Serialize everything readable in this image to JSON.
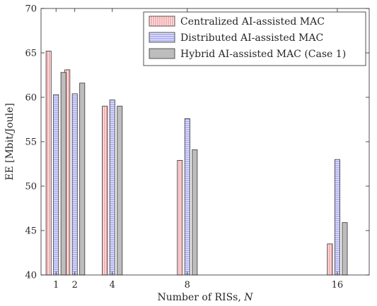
{
  "chart_data": {
    "type": "bar",
    "title": "",
    "xlabel": "Number of RISs,",
    "xlabel_var": "N",
    "ylabel": "EE [Mbit/Joule]",
    "x": [
      1,
      2,
      4,
      8,
      16
    ],
    "x_tick_labels": [
      "1",
      "2",
      "4",
      "8",
      "16"
    ],
    "xlim": [
      0.2,
      17.7
    ],
    "ylim": [
      40,
      70
    ],
    "y_ticks": [
      40,
      45,
      50,
      55,
      60,
      65,
      70
    ],
    "y_tick_labels": [
      "40",
      "45",
      "50",
      "55",
      "60",
      "65",
      "70"
    ],
    "grid": false,
    "legend_position": "top-right",
    "series": [
      {
        "name": "Centralized AI-assisted MAC",
        "color": "#e8646a",
        "fill": "#f9d0d2",
        "hatch": "vertical",
        "values": [
          65.2,
          63.1,
          59.0,
          52.9,
          43.5
        ]
      },
      {
        "name": "Distributed AI-assisted MAC",
        "color": "#6a6ae6",
        "fill": "#d4d4f7",
        "hatch": "horizontal",
        "values": [
          60.3,
          60.4,
          59.7,
          57.6,
          53.0
        ]
      },
      {
        "name": "Hybrid AI-assisted MAC (Case 1)",
        "color": "#8c8c8c",
        "fill": "#bdbdbd",
        "hatch": "none",
        "values": [
          62.8,
          61.6,
          59.0,
          54.1,
          45.9
        ]
      }
    ]
  }
}
